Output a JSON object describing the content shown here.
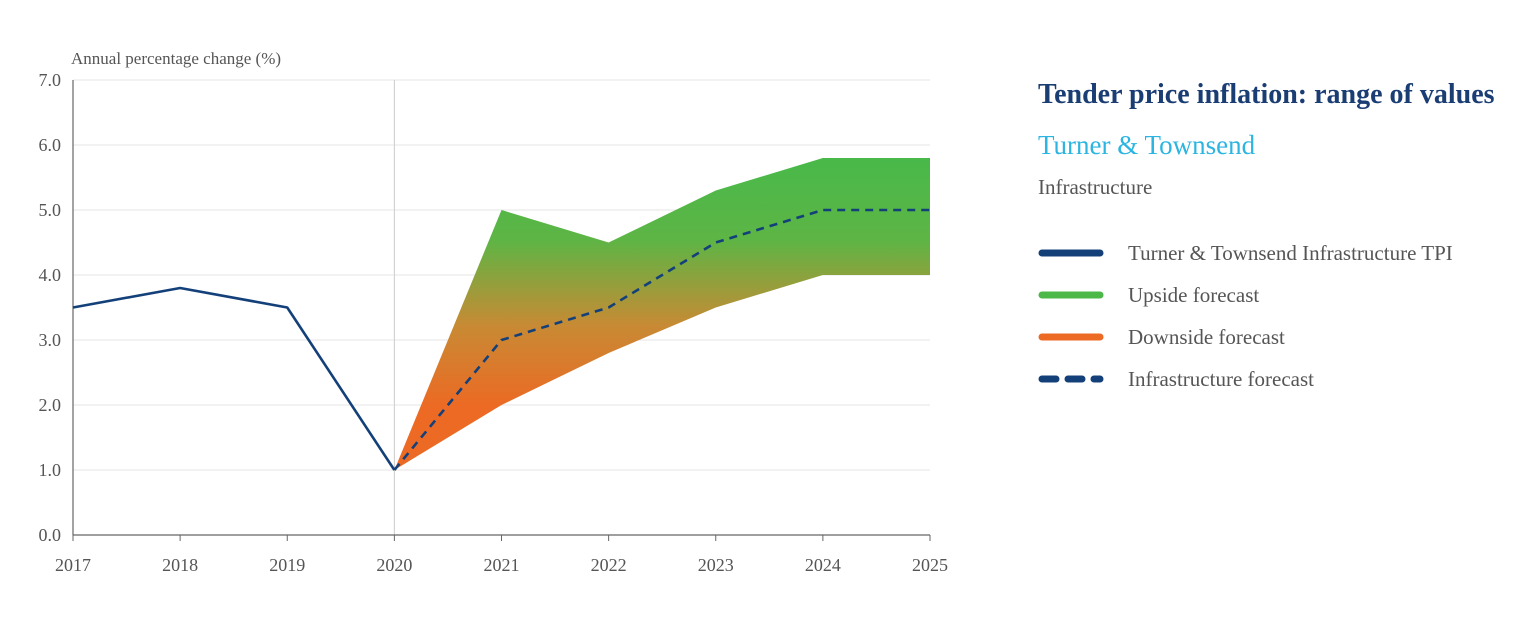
{
  "side": {
    "title": "Tender price inflation: range of values",
    "subtitle": "Turner & Townsend",
    "category": "Infrastructure"
  },
  "legend": [
    {
      "label": "Turner & Townsend Infrastructure TPI",
      "color": "#14407a",
      "style": "solid"
    },
    {
      "label": "Upside forecast",
      "color": "#4cb848",
      "style": "solid"
    },
    {
      "label": "Downside forecast",
      "color": "#ec6a24",
      "style": "solid"
    },
    {
      "label": "Infrastructure forecast",
      "color": "#14407a",
      "style": "dashed"
    }
  ],
  "chart_data": {
    "type": "area",
    "ylabel": "Annual percentage change (%)",
    "xlabel": "",
    "x": [
      "2017",
      "2018",
      "2019",
      "2020",
      "2021",
      "2022",
      "2023",
      "2024",
      "2025"
    ],
    "ylim": [
      0,
      7
    ],
    "yticks": [
      "0.0",
      "1.0",
      "2.0",
      "3.0",
      "4.0",
      "5.0",
      "6.0",
      "7.0"
    ],
    "grid": true,
    "series": [
      {
        "name": "Turner & Townsend Infrastructure TPI",
        "x": [
          "2017",
          "2018",
          "2019",
          "2020"
        ],
        "values": [
          3.5,
          3.8,
          3.5,
          1.0
        ]
      },
      {
        "name": "Upside forecast",
        "x": [
          "2020",
          "2021",
          "2022",
          "2023",
          "2024",
          "2025"
        ],
        "values": [
          1.0,
          5.0,
          4.5,
          5.3,
          5.8,
          5.8
        ]
      },
      {
        "name": "Downside forecast",
        "x": [
          "2020",
          "2021",
          "2022",
          "2023",
          "2024",
          "2025"
        ],
        "values": [
          1.0,
          2.0,
          2.8,
          3.5,
          4.0,
          4.0
        ]
      },
      {
        "name": "Infrastructure forecast",
        "x": [
          "2020",
          "2021",
          "2022",
          "2023",
          "2024",
          "2025"
        ],
        "values": [
          1.0,
          3.0,
          3.5,
          4.5,
          5.0,
          5.0
        ]
      }
    ]
  }
}
